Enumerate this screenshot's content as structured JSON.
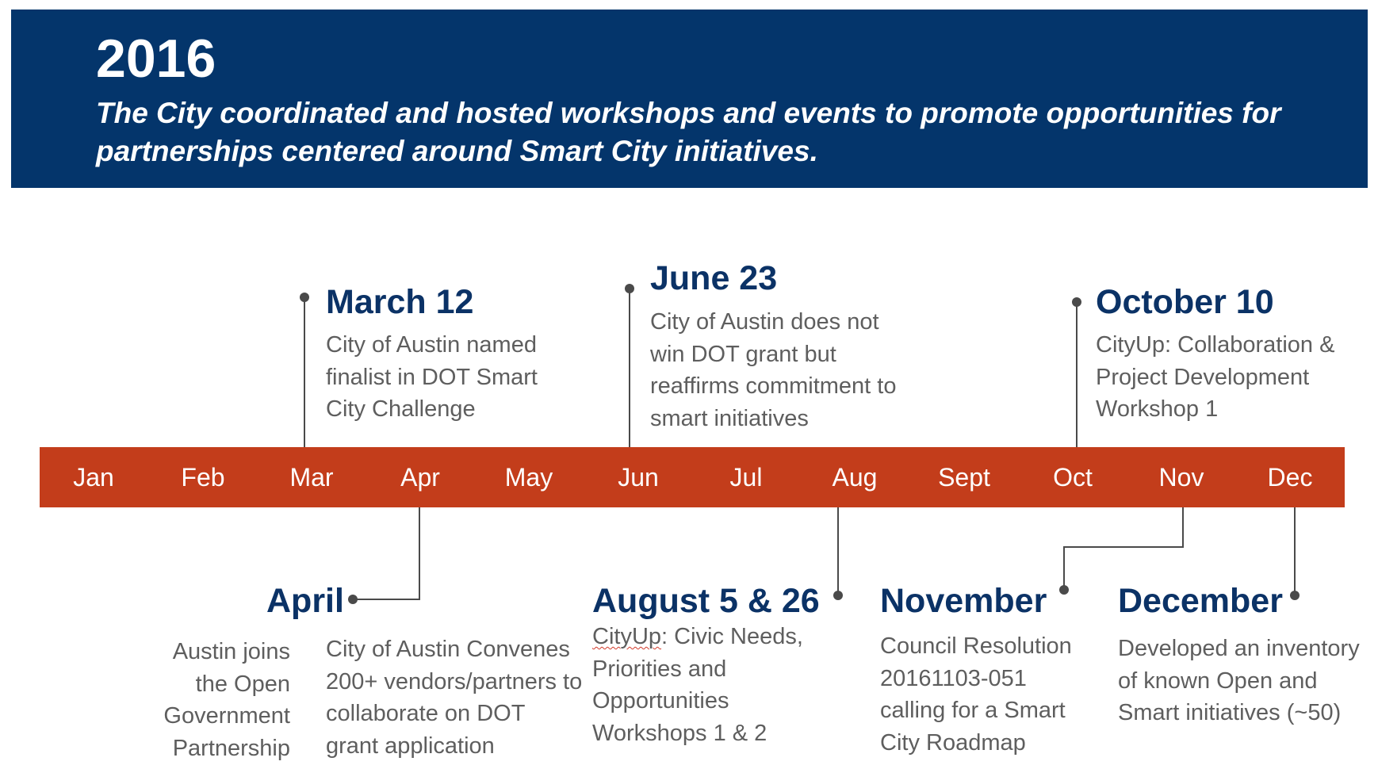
{
  "header": {
    "year": "2016",
    "subtitle": "The City coordinated and hosted workshops and events to promote opportunities for partnerships centered around Smart City initiatives."
  },
  "timeline": {
    "months": [
      "Jan",
      "Feb",
      "Mar",
      "Apr",
      "May",
      "Jun",
      "Jul",
      "Aug",
      "Sept",
      "Oct",
      "Nov",
      "Dec"
    ]
  },
  "colors": {
    "header_bg": "#04356b",
    "bar_bg": "#c33d1b",
    "title_text": "#0b3266",
    "desc_text": "#5e5e5e",
    "connector": "#4a4a4a"
  },
  "events": {
    "march": {
      "title": "March 12",
      "desc": "City of Austin named finalist in DOT Smart City Challenge"
    },
    "june": {
      "title": "June 23",
      "desc": "City of Austin does not win DOT grant but reaffirms commitment to smart initiatives"
    },
    "october": {
      "title": "October 10",
      "desc": "CityUp: Collaboration & Project Development Workshop 1"
    },
    "april": {
      "title": "April",
      "desc_left": "Austin joins the Open Government Partnership",
      "desc_right": "City of Austin Convenes 200+ vendors/partners to collaborate on DOT grant application"
    },
    "august": {
      "title": "August 5 & 26",
      "desc_word1": "CityUp",
      "desc_rest": ": Civic Needs, Priorities and Opportunities Workshops 1 & 2"
    },
    "november": {
      "title": "November",
      "desc": "Council Resolution 20161103-051 calling for a Smart City Roadmap"
    },
    "december": {
      "title": "December",
      "desc": "Developed an inventory of known Open and Smart initiatives (~50)"
    }
  }
}
